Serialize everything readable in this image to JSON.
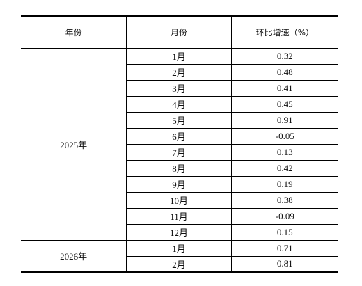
{
  "table": {
    "headers": {
      "year": "年份",
      "month": "月份",
      "rate": "环比增速（%）"
    },
    "groups": [
      {
        "year": "2025年",
        "rows": [
          {
            "month": "1月",
            "rate": "0.32"
          },
          {
            "month": "2月",
            "rate": "0.48"
          },
          {
            "month": "3月",
            "rate": "0.41"
          },
          {
            "month": "4月",
            "rate": "0.45"
          },
          {
            "month": "5月",
            "rate": "0.91"
          },
          {
            "month": "6月",
            "rate": "-0.05"
          },
          {
            "month": "7月",
            "rate": "0.13"
          },
          {
            "month": "8月",
            "rate": "0.42"
          },
          {
            "month": "9月",
            "rate": "0.19"
          },
          {
            "month": "10月",
            "rate": "0.38"
          },
          {
            "month": "11月",
            "rate": "-0.09"
          },
          {
            "month": "12月",
            "rate": "0.15"
          }
        ]
      },
      {
        "year": "2026年",
        "rows": [
          {
            "month": "1月",
            "rate": "0.71"
          },
          {
            "month": "2月",
            "rate": "0.81"
          }
        ]
      }
    ]
  }
}
